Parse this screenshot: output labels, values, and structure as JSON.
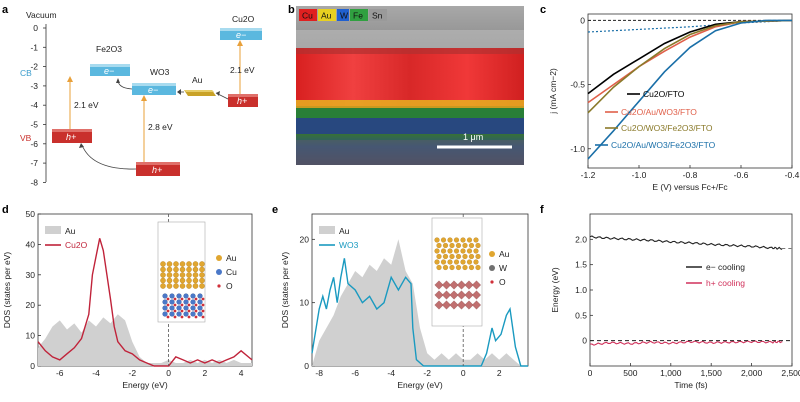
{
  "panel_letters": [
    "a",
    "b",
    "c",
    "d",
    "e",
    "f"
  ],
  "panel_a": {
    "vacuum_label": "Vacuum",
    "y_ticks": [
      "0",
      "-1",
      "-2",
      "-3",
      "-4",
      "-5",
      "-6",
      "-7",
      "-8"
    ],
    "cb_label": "CB",
    "vb_label": "VB",
    "fe2o3_label": "Fe2O3",
    "wo3_label": "WO3",
    "au_label": "Au",
    "cu2o_label": "Cu2O",
    "gap_fe2o3": "2.1 eV",
    "gap_wo3": "2.8 eV",
    "gap_cu2o": "2.1 eV",
    "electron": "e−",
    "hole": "h+",
    "colors": {
      "cb": "#5bb8df",
      "vb": "#c9302c",
      "au": "#c9a227",
      "arrow": "#e8a03a"
    }
  },
  "panel_b": {
    "legend": [
      {
        "label": "Cu",
        "color": "#e02020"
      },
      {
        "label": "Au",
        "color": "#e8d020"
      },
      {
        "label": "W",
        "color": "#2060d0"
      },
      {
        "label": "Fe",
        "color": "#30a040"
      },
      {
        "label": "Sn",
        "color": "#9a9a9a"
      }
    ],
    "scale_bar": "1 μm"
  },
  "panel_c": {
    "chart_data": {
      "type": "line",
      "xlabel": "E (V) versus Fc+/Fc",
      "ylabel": "j (mA cm−2)",
      "xlim": [
        -1.2,
        -0.4
      ],
      "ylim": [
        -1.15,
        0.05
      ],
      "x_ticks": [
        "-1.2",
        "-1.0",
        "-0.8",
        "-0.6",
        "-0.4"
      ],
      "y_ticks": [
        "0",
        "-0.5",
        "-1.0"
      ],
      "series": [
        {
          "name": "Cu2O/FTO",
          "color": "#000000",
          "points": [
            [
              -1.2,
              -0.57
            ],
            [
              -1.1,
              -0.42
            ],
            [
              -1.0,
              -0.3
            ],
            [
              -0.9,
              -0.18
            ],
            [
              -0.8,
              -0.09
            ],
            [
              -0.7,
              -0.03
            ],
            [
              -0.6,
              -0.01
            ],
            [
              -0.4,
              0.0
            ]
          ]
        },
        {
          "name": "Cu2O/Au/WO3/FTO",
          "color": "#e0604a",
          "points": [
            [
              -1.2,
              -0.64
            ],
            [
              -1.1,
              -0.5
            ],
            [
              -1.0,
              -0.36
            ],
            [
              -0.9,
              -0.24
            ],
            [
              -0.8,
              -0.13
            ],
            [
              -0.7,
              -0.05
            ],
            [
              -0.6,
              -0.01
            ],
            [
              -0.4,
              0.0
            ]
          ]
        },
        {
          "name": "Cu2O/WO3/Fe2O3/FTO",
          "color": "#8a7a2a",
          "points": [
            [
              -1.2,
              -0.72
            ],
            [
              -1.1,
              -0.52
            ],
            [
              -1.0,
              -0.36
            ],
            [
              -0.9,
              -0.22
            ],
            [
              -0.8,
              -0.11
            ],
            [
              -0.7,
              -0.04
            ],
            [
              -0.6,
              -0.01
            ],
            [
              -0.4,
              0.0
            ]
          ]
        },
        {
          "name": "Cu2O/Au/WO3/Fe2O3/FTO",
          "color": "#1a6fa8",
          "points": [
            [
              -1.2,
              -1.08
            ],
            [
              -1.1,
              -0.86
            ],
            [
              -1.0,
              -0.63
            ],
            [
              -0.9,
              -0.4
            ],
            [
              -0.8,
              -0.21
            ],
            [
              -0.7,
              -0.08
            ],
            [
              -0.6,
              -0.02
            ],
            [
              -0.5,
              0.0
            ],
            [
              -0.4,
              0.0
            ]
          ]
        }
      ],
      "dark_series": [
        {
          "name": "dark",
          "color": "#1a6fa8",
          "points": [
            [
              -1.2,
              -0.09
            ],
            [
              -1.0,
              -0.07
            ],
            [
              -0.8,
              -0.05
            ],
            [
              -0.6,
              -0.02
            ],
            [
              -0.4,
              0.0
            ]
          ]
        }
      ]
    },
    "legend_labels": [
      "Cu2O/FTO",
      "Cu2O/Au/WO3/FTO",
      "Cu2O/WO3/Fe2O3/FTO",
      "Cu2O/Au/WO3/Fe2O3/FTO"
    ]
  },
  "panel_d": {
    "chart_data": {
      "type": "area",
      "xlabel": "Energy (eV)",
      "ylabel": "DOS (states per eV)",
      "xlim": [
        -7.2,
        4.6
      ],
      "ylim": [
        0,
        50
      ],
      "x_ticks": [
        "-6",
        "-4",
        "-2",
        "0",
        "2",
        "4"
      ],
      "y_ticks": [
        "0",
        "10",
        "20",
        "30",
        "40",
        "50"
      ],
      "series": [
        {
          "name": "Au",
          "color": "#d0d0d0",
          "points": [
            [
              -7.2,
              6
            ],
            [
              -6.8,
              9
            ],
            [
              -6.4,
              13
            ],
            [
              -6.0,
              15
            ],
            [
              -5.6,
              12
            ],
            [
              -5.2,
              14
            ],
            [
              -4.8,
              11
            ],
            [
              -4.4,
              15
            ],
            [
              -4.0,
              13
            ],
            [
              -3.6,
              16
            ],
            [
              -3.2,
              14
            ],
            [
              -2.8,
              17
            ],
            [
              -2.4,
              15
            ],
            [
              -2.0,
              8
            ],
            [
              -1.6,
              3
            ],
            [
              -1.2,
              1
            ],
            [
              -0.8,
              1
            ],
            [
              -0.4,
              1
            ],
            [
              0,
              2
            ],
            [
              0.4,
              1
            ],
            [
              0.8,
              1
            ],
            [
              1.2,
              2
            ],
            [
              1.6,
              1
            ],
            [
              2.0,
              2
            ],
            [
              2.4,
              1
            ],
            [
              2.8,
              2
            ],
            [
              3.2,
              1
            ],
            [
              3.6,
              2
            ],
            [
              4.0,
              1
            ],
            [
              4.6,
              1
            ]
          ]
        },
        {
          "name": "Cu2O",
          "color": "#c0233a",
          "points": [
            [
              -7.2,
              8
            ],
            [
              -6.8,
              5
            ],
            [
              -6.4,
              3
            ],
            [
              -6.0,
              2
            ],
            [
              -5.6,
              4
            ],
            [
              -5.2,
              6
            ],
            [
              -4.8,
              9
            ],
            [
              -4.4,
              17
            ],
            [
              -4.2,
              30
            ],
            [
              -4.0,
              36
            ],
            [
              -3.8,
              42
            ],
            [
              -3.6,
              38
            ],
            [
              -3.4,
              30
            ],
            [
              -3.2,
              22
            ],
            [
              -3.0,
              13
            ],
            [
              -2.8,
              8
            ],
            [
              -2.4,
              5
            ],
            [
              -2.0,
              4
            ],
            [
              -1.6,
              2
            ],
            [
              -1.2,
              1
            ],
            [
              -0.8,
              0
            ],
            [
              0,
              0
            ],
            [
              0.4,
              3
            ],
            [
              0.8,
              2
            ],
            [
              1.2,
              1
            ],
            [
              1.6,
              2
            ],
            [
              2.0,
              1
            ],
            [
              2.4,
              2
            ],
            [
              2.8,
              1
            ],
            [
              3.2,
              2
            ],
            [
              3.6,
              3
            ],
            [
              4.0,
              5
            ],
            [
              4.6,
              2
            ]
          ]
        }
      ]
    },
    "legend_labels": [
      "Au",
      "Cu2O"
    ],
    "inset_labels": [
      "Au",
      "Cu",
      "O"
    ]
  },
  "panel_e": {
    "chart_data": {
      "type": "area",
      "xlabel": "Energy (eV)",
      "ylabel": "DOS (states per eV)",
      "xlim": [
        -8.4,
        3.6
      ],
      "ylim": [
        0,
        24
      ],
      "x_ticks": [
        "-8",
        "-6",
        "-4",
        "-2",
        "0",
        "2"
      ],
      "y_ticks": [
        "0",
        "10",
        "20"
      ],
      "series": [
        {
          "name": "Au",
          "color": "#d0d0d0",
          "points": [
            [
              -8.4,
              0
            ],
            [
              -8.0,
              4
            ],
            [
              -7.6,
              6
            ],
            [
              -7.2,
              8
            ],
            [
              -6.8,
              11
            ],
            [
              -6.4,
              13
            ],
            [
              -6.0,
              15
            ],
            [
              -5.6,
              14
            ],
            [
              -5.2,
              16
            ],
            [
              -4.8,
              15
            ],
            [
              -4.4,
              17
            ],
            [
              -4.0,
              16
            ],
            [
              -3.6,
              20
            ],
            [
              -3.2,
              15
            ],
            [
              -2.8,
              13
            ],
            [
              -2.4,
              6
            ],
            [
              -2.0,
              2
            ],
            [
              -1.6,
              1
            ],
            [
              -1.2,
              2
            ],
            [
              -0.8,
              1
            ],
            [
              -0.4,
              2
            ],
            [
              0,
              1
            ],
            [
              0.4,
              1
            ],
            [
              0.8,
              2
            ],
            [
              1.2,
              1
            ],
            [
              1.6,
              2
            ],
            [
              2.0,
              1
            ],
            [
              2.4,
              2
            ],
            [
              2.8,
              1
            ],
            [
              3.2,
              0
            ],
            [
              3.6,
              0
            ]
          ]
        },
        {
          "name": "WO3",
          "color": "#1a9ac0",
          "points": [
            [
              -8.4,
              2
            ],
            [
              -8.0,
              9
            ],
            [
              -7.8,
              11
            ],
            [
              -7.6,
              9
            ],
            [
              -7.4,
              12
            ],
            [
              -7.2,
              14
            ],
            [
              -7.0,
              10
            ],
            [
              -6.8,
              14
            ],
            [
              -6.6,
              17
            ],
            [
              -6.4,
              13
            ],
            [
              -6.0,
              12
            ],
            [
              -5.6,
              10
            ],
            [
              -5.2,
              11
            ],
            [
              -4.8,
              9
            ],
            [
              -4.4,
              10
            ],
            [
              -4.0,
              14
            ],
            [
              -3.6,
              12
            ],
            [
              -3.2,
              14
            ],
            [
              -2.9,
              13
            ],
            [
              -2.8,
              6
            ],
            [
              -2.6,
              1
            ],
            [
              -2.2,
              0
            ],
            [
              1.0,
              0
            ],
            [
              1.3,
              2
            ],
            [
              1.6,
              6
            ],
            [
              1.8,
              4
            ],
            [
              2.1,
              5
            ],
            [
              2.4,
              8
            ],
            [
              2.6,
              9
            ],
            [
              2.9,
              3
            ],
            [
              3.2,
              0
            ],
            [
              3.6,
              0
            ]
          ]
        }
      ]
    },
    "legend_labels": [
      "Au",
      "WO3"
    ],
    "inset_labels": [
      "Au",
      "W",
      "O"
    ]
  },
  "panel_f": {
    "chart_data": {
      "type": "line",
      "xlabel": "Time (fs)",
      "ylabel": "Energy (eV)",
      "xlim": [
        0,
        2500
      ],
      "ylim": [
        -0.5,
        2.5
      ],
      "x_ticks": [
        "0",
        "500",
        "1,000",
        "1,500",
        "2,000",
        "2,500"
      ],
      "y_ticks": [
        "0",
        "0.5",
        "1.0",
        "1.5",
        "2.0"
      ],
      "series": [
        {
          "name": "e− cooling",
          "color": "#222222",
          "points": [
            [
              0,
              2.05
            ],
            [
              250,
              2.02
            ],
            [
              500,
              2.0
            ],
            [
              750,
              1.98
            ],
            [
              1000,
              1.95
            ],
            [
              1250,
              1.93
            ],
            [
              1500,
              1.9
            ],
            [
              1750,
              1.88
            ],
            [
              2000,
              1.86
            ],
            [
              2250,
              1.83
            ],
            [
              2380,
              1.82
            ]
          ]
        },
        {
          "name": "h+ cooling",
          "color": "#d0305a",
          "points": [
            [
              0,
              -0.08
            ],
            [
              250,
              -0.04
            ],
            [
              500,
              -0.06
            ],
            [
              750,
              -0.03
            ],
            [
              1000,
              -0.05
            ],
            [
              1250,
              -0.02
            ],
            [
              1500,
              -0.04
            ],
            [
              1750,
              -0.03
            ],
            [
              2000,
              -0.02
            ],
            [
              2250,
              -0.03
            ],
            [
              2380,
              -0.02
            ]
          ]
        }
      ]
    },
    "legend_labels": [
      "e− cooling",
      "h+ cooling"
    ]
  }
}
